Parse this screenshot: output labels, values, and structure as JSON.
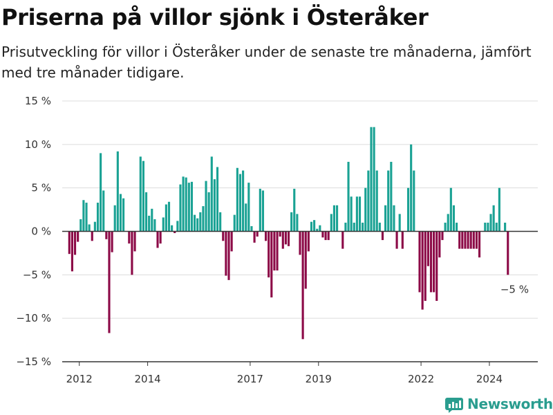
{
  "title": "Priserna på villor sjönk i Österåker",
  "subtitle": "Prisutveckling för villor i Österåker under de senaste tre månaderna, jämfört med tre månader tidigare.",
  "brand": {
    "name": "Newsworthy",
    "color": "#2a9d8f"
  },
  "chart_data": {
    "type": "bar",
    "y_unit": "%",
    "ylim": [
      -15,
      15
    ],
    "y_ticks": [
      15,
      10,
      5,
      0,
      -5,
      -10,
      -15
    ],
    "y_tick_labels": [
      "15 %",
      "10 %",
      "5 %",
      "0 %",
      "−5 %",
      "−10 %",
      "−15 %"
    ],
    "x_tick_labels": [
      "2012",
      "2014",
      "2017",
      "2019",
      "2022",
      "2024"
    ],
    "x_range": [
      "2011-07",
      "2025-06"
    ],
    "grid": "horizontal",
    "colors": {
      "positive": "#1aa294",
      "negative": "#8c0a47"
    },
    "annotation": {
      "text": "−5 %",
      "date": "2025-01"
    },
    "series": [
      {
        "date": "2011-09",
        "value": -2.6
      },
      {
        "date": "2011-10",
        "value": -4.6
      },
      {
        "date": "2011-11",
        "value": -2.7
      },
      {
        "date": "2011-12",
        "value": -1.2
      },
      {
        "date": "2012-01",
        "value": 1.4
      },
      {
        "date": "2012-02",
        "value": 3.6
      },
      {
        "date": "2012-03",
        "value": 3.3
      },
      {
        "date": "2012-04",
        "value": 0.8
      },
      {
        "date": "2012-05",
        "value": -1.1
      },
      {
        "date": "2012-06",
        "value": 1.1
      },
      {
        "date": "2012-07",
        "value": 3.3
      },
      {
        "date": "2012-08",
        "value": 9.0
      },
      {
        "date": "2012-09",
        "value": 4.7
      },
      {
        "date": "2012-10",
        "value": -0.9
      },
      {
        "date": "2012-11",
        "value": -11.7
      },
      {
        "date": "2012-12",
        "value": -2.4
      },
      {
        "date": "2013-01",
        "value": 3.0
      },
      {
        "date": "2013-02",
        "value": 9.2
      },
      {
        "date": "2013-03",
        "value": 4.3
      },
      {
        "date": "2013-04",
        "value": 3.8
      },
      {
        "date": "2013-06",
        "value": -1.4
      },
      {
        "date": "2013-07",
        "value": -5.0
      },
      {
        "date": "2013-08",
        "value": -2.3
      },
      {
        "date": "2013-10",
        "value": 8.6
      },
      {
        "date": "2013-11",
        "value": 8.1
      },
      {
        "date": "2013-12",
        "value": 4.5
      },
      {
        "date": "2014-01",
        "value": 1.8
      },
      {
        "date": "2014-02",
        "value": 2.6
      },
      {
        "date": "2014-03",
        "value": 1.4
      },
      {
        "date": "2014-04",
        "value": -1.9
      },
      {
        "date": "2014-05",
        "value": -1.4
      },
      {
        "date": "2014-06",
        "value": 1.6
      },
      {
        "date": "2014-07",
        "value": 3.1
      },
      {
        "date": "2014-08",
        "value": 3.4
      },
      {
        "date": "2014-09",
        "value": 0.7
      },
      {
        "date": "2014-10",
        "value": -0.2
      },
      {
        "date": "2014-11",
        "value": 1.2
      },
      {
        "date": "2014-12",
        "value": 5.4
      },
      {
        "date": "2015-01",
        "value": 6.3
      },
      {
        "date": "2015-02",
        "value": 6.2
      },
      {
        "date": "2015-03",
        "value": 5.6
      },
      {
        "date": "2015-04",
        "value": 5.7
      },
      {
        "date": "2015-05",
        "value": 1.9
      },
      {
        "date": "2015-06",
        "value": 1.5
      },
      {
        "date": "2015-07",
        "value": 2.2
      },
      {
        "date": "2015-08",
        "value": 2.9
      },
      {
        "date": "2015-09",
        "value": 5.8
      },
      {
        "date": "2015-10",
        "value": 4.5
      },
      {
        "date": "2015-11",
        "value": 8.6
      },
      {
        "date": "2015-12",
        "value": 6.0
      },
      {
        "date": "2016-01",
        "value": 7.4
      },
      {
        "date": "2016-02",
        "value": 2.2
      },
      {
        "date": "2016-03",
        "value": -1.1
      },
      {
        "date": "2016-04",
        "value": -5.1
      },
      {
        "date": "2016-05",
        "value": -5.6
      },
      {
        "date": "2016-06",
        "value": -2.3
      },
      {
        "date": "2016-07",
        "value": 1.9
      },
      {
        "date": "2016-08",
        "value": 7.3
      },
      {
        "date": "2016-09",
        "value": 6.6
      },
      {
        "date": "2016-10",
        "value": 7.0
      },
      {
        "date": "2016-11",
        "value": 3.2
      },
      {
        "date": "2016-12",
        "value": 5.6
      },
      {
        "date": "2017-01",
        "value": 0.6
      },
      {
        "date": "2017-02",
        "value": -1.3
      },
      {
        "date": "2017-03",
        "value": -0.6
      },
      {
        "date": "2017-04",
        "value": 4.9
      },
      {
        "date": "2017-05",
        "value": 4.7
      },
      {
        "date": "2017-06",
        "value": -1.1
      },
      {
        "date": "2017-07",
        "value": -5.3
      },
      {
        "date": "2017-08",
        "value": -7.6
      },
      {
        "date": "2017-09",
        "value": -4.5
      },
      {
        "date": "2017-10",
        "value": -4.5
      },
      {
        "date": "2017-11",
        "value": -0.6
      },
      {
        "date": "2017-12",
        "value": -2.0
      },
      {
        "date": "2018-01",
        "value": -1.5
      },
      {
        "date": "2018-02",
        "value": -1.7
      },
      {
        "date": "2018-03",
        "value": 2.2
      },
      {
        "date": "2018-04",
        "value": 4.9
      },
      {
        "date": "2018-05",
        "value": 2.0
      },
      {
        "date": "2018-06",
        "value": -2.7
      },
      {
        "date": "2018-07",
        "value": -12.4
      },
      {
        "date": "2018-08",
        "value": -6.6
      },
      {
        "date": "2018-09",
        "value": -2.3
      },
      {
        "date": "2018-10",
        "value": 1.1
      },
      {
        "date": "2018-11",
        "value": 1.3
      },
      {
        "date": "2018-12",
        "value": 0.3
      },
      {
        "date": "2019-01",
        "value": 0.7
      },
      {
        "date": "2019-02",
        "value": -0.7
      },
      {
        "date": "2019-03",
        "value": -1.0
      },
      {
        "date": "2019-04",
        "value": -1.0
      },
      {
        "date": "2019-05",
        "value": 2.0
      },
      {
        "date": "2019-06",
        "value": 3.0
      },
      {
        "date": "2019-07",
        "value": 3.0
      },
      {
        "date": "2019-09",
        "value": -2.0
      },
      {
        "date": "2019-10",
        "value": 1.0
      },
      {
        "date": "2019-11",
        "value": 8.0
      },
      {
        "date": "2019-12",
        "value": 4.0
      },
      {
        "date": "2020-01",
        "value": 1.0
      },
      {
        "date": "2020-02",
        "value": 4.0
      },
      {
        "date": "2020-03",
        "value": 4.0
      },
      {
        "date": "2020-04",
        "value": 1.0
      },
      {
        "date": "2020-05",
        "value": 5.0
      },
      {
        "date": "2020-06",
        "value": 7.0
      },
      {
        "date": "2020-07",
        "value": 12.0
      },
      {
        "date": "2020-08",
        "value": 12.0
      },
      {
        "date": "2020-09",
        "value": 7.0
      },
      {
        "date": "2020-10",
        "value": 1.0
      },
      {
        "date": "2020-11",
        "value": -1.0
      },
      {
        "date": "2020-12",
        "value": 3.0
      },
      {
        "date": "2021-01",
        "value": 7.0
      },
      {
        "date": "2021-02",
        "value": 8.0
      },
      {
        "date": "2021-03",
        "value": 3.0
      },
      {
        "date": "2021-04",
        "value": -2.0
      },
      {
        "date": "2021-05",
        "value": 2.0
      },
      {
        "date": "2021-06",
        "value": -2.0
      },
      {
        "date": "2021-08",
        "value": 5.0
      },
      {
        "date": "2021-09",
        "value": 10.0
      },
      {
        "date": "2021-10",
        "value": 7.0
      },
      {
        "date": "2021-11",
        "value": 0.0
      },
      {
        "date": "2021-12",
        "value": -7.0
      },
      {
        "date": "2022-01",
        "value": -9.0
      },
      {
        "date": "2022-02",
        "value": -8.0
      },
      {
        "date": "2022-03",
        "value": -4.0
      },
      {
        "date": "2022-04",
        "value": -7.0
      },
      {
        "date": "2022-05",
        "value": -7.0
      },
      {
        "date": "2022-06",
        "value": -8.0
      },
      {
        "date": "2022-07",
        "value": -3.0
      },
      {
        "date": "2022-08",
        "value": -1.0
      },
      {
        "date": "2022-09",
        "value": 1.0
      },
      {
        "date": "2022-10",
        "value": 2.0
      },
      {
        "date": "2022-11",
        "value": 5.0
      },
      {
        "date": "2022-12",
        "value": 3.0
      },
      {
        "date": "2023-01",
        "value": 1.0
      },
      {
        "date": "2023-02",
        "value": -2.0
      },
      {
        "date": "2023-03",
        "value": -2.0
      },
      {
        "date": "2023-04",
        "value": -2.0
      },
      {
        "date": "2023-05",
        "value": -2.0
      },
      {
        "date": "2023-06",
        "value": -2.0
      },
      {
        "date": "2023-07",
        "value": -2.0
      },
      {
        "date": "2023-08",
        "value": -2.0
      },
      {
        "date": "2023-09",
        "value": -3.0
      },
      {
        "date": "2023-11",
        "value": 1.0
      },
      {
        "date": "2023-12",
        "value": 1.0
      },
      {
        "date": "2024-01",
        "value": 2.0
      },
      {
        "date": "2024-02",
        "value": 3.0
      },
      {
        "date": "2024-03",
        "value": 1.0
      },
      {
        "date": "2024-04",
        "value": 5.0
      },
      {
        "date": "2024-06",
        "value": 1.0
      },
      {
        "date": "2024-07",
        "value": -5.0
      }
    ]
  }
}
